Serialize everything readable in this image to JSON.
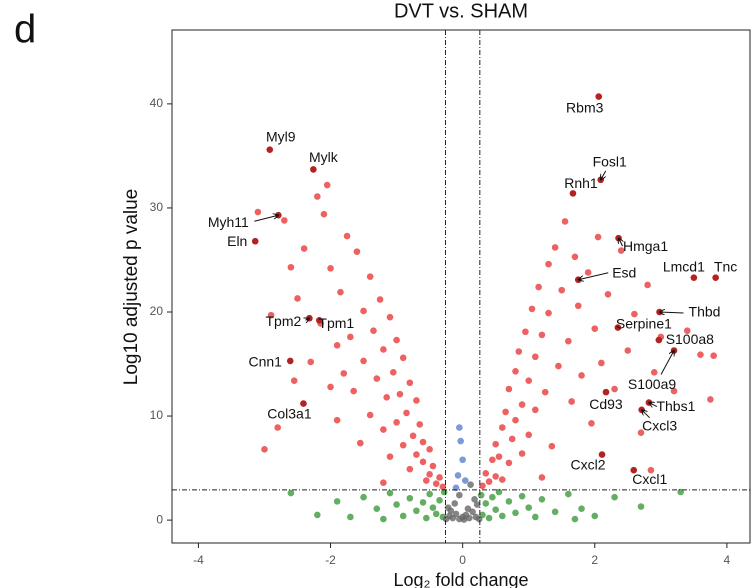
{
  "chart_data": {
    "type": "scatter",
    "panel_label": "d",
    "title": "DVT vs. SHAM",
    "xlabel": "Log₂ fold change",
    "ylabel": "Log10 adjusted p value",
    "xlim": [
      -4.4,
      4.35
    ],
    "ylim": [
      -2.2,
      47.1
    ],
    "xticks": [
      -4,
      -2,
      0,
      2,
      4
    ],
    "yticks": [
      0,
      10,
      20,
      30,
      40
    ],
    "grid": false,
    "thresholds": {
      "x": [
        -0.26,
        0.26
      ],
      "y": 2.9
    },
    "series": [
      {
        "color": "#3c9a3c",
        "x": [
          -2.6,
          -2.2,
          -1.9,
          -1.7,
          -1.5,
          -1.3,
          -1.2,
          -1.1,
          -1.0,
          -0.9,
          -0.8,
          -0.7,
          -0.6,
          -0.55,
          -0.5,
          -0.45,
          -0.4,
          -0.35,
          -0.3,
          -0.28,
          0.28,
          0.3,
          0.35,
          0.4,
          0.45,
          0.5,
          0.55,
          0.6,
          0.7,
          0.8,
          0.9,
          1.0,
          1.1,
          1.2,
          1.4,
          1.6,
          1.8,
          2.0,
          2.3,
          2.7,
          3.3,
          1.7
        ],
        "values": [
          2.6,
          0.5,
          1.8,
          0.3,
          2.2,
          1.1,
          0.1,
          2.6,
          1.5,
          0.4,
          2.1,
          0.9,
          1.7,
          0.2,
          2.5,
          1.2,
          0.6,
          1.9,
          0.3,
          2.7,
          2.4,
          0.5,
          1.6,
          0.2,
          2.2,
          1.0,
          2.7,
          0.4,
          1.8,
          0.7,
          2.3,
          1.2,
          0.3,
          2.0,
          0.8,
          2.5,
          1.1,
          0.4,
          2.2,
          1.3,
          2.7,
          0.1
        ]
      },
      {
        "color": "#666666",
        "x": [
          -0.25,
          -0.2,
          -0.15,
          -0.1,
          -0.05,
          0,
          0.05,
          0.1,
          0.15,
          0.2,
          0.25,
          -0.22,
          -0.12,
          0.08,
          0.18,
          -0.05,
          0.12,
          -0.18,
          0.02,
          0.22
        ],
        "values": [
          0.1,
          0.4,
          0.2,
          0.6,
          0.1,
          0.3,
          0.5,
          0.2,
          0.8,
          0.3,
          0.1,
          1.2,
          1.6,
          1.1,
          2.0,
          2.4,
          3.4,
          0.9,
          0.05,
          1.5
        ]
      },
      {
        "color": "#5b7fd1",
        "x": [
          -0.05,
          -0.03,
          0,
          -0.07,
          0.04,
          -0.1
        ],
        "values": [
          8.9,
          7.6,
          5.8,
          4.3,
          3.8,
          3.1
        ]
      },
      {
        "color": "#e8393b",
        "x": [
          -0.3,
          -0.35,
          -0.4,
          -0.45,
          -0.5,
          -0.5,
          -0.55,
          -0.6,
          -0.6,
          -0.65,
          -0.7,
          -0.7,
          -0.75,
          -0.8,
          -0.8,
          -0.85,
          -0.9,
          -0.9,
          -0.95,
          -1.0,
          -1.0,
          -1.05,
          -1.1,
          -1.1,
          -1.15,
          -1.2,
          -1.2,
          -1.25,
          -1.3,
          -1.35,
          -1.4,
          -1.4,
          -1.5,
          -1.5,
          -1.55,
          -1.6,
          -1.65,
          -1.7,
          -1.75,
          -1.8,
          -1.85,
          -1.9,
          -1.9,
          -2.0,
          -2.0,
          -2.1,
          -2.15,
          -2.2,
          -2.3,
          -2.4,
          -2.5,
          -2.55,
          -2.6,
          -2.7,
          -2.8,
          -2.9,
          -3.0,
          -3.1,
          -2.05,
          -1.2,
          0.3,
          0.35,
          0.4,
          0.45,
          0.5,
          0.5,
          0.55,
          0.6,
          0.6,
          0.65,
          0.7,
          0.7,
          0.75,
          0.8,
          0.8,
          0.85,
          0.9,
          0.9,
          0.95,
          1.0,
          1.0,
          1.05,
          1.1,
          1.1,
          1.15,
          1.2,
          1.25,
          1.3,
          1.3,
          1.35,
          1.4,
          1.45,
          1.5,
          1.55,
          1.6,
          1.65,
          1.7,
          1.75,
          1.8,
          1.9,
          1.95,
          2.0,
          2.05,
          2.1,
          2.2,
          2.3,
          2.4,
          2.5,
          2.6,
          2.7,
          2.8,
          2.9,
          3.0,
          3.2,
          3.4,
          3.6,
          3.8,
          3.75,
          2.85,
          1.2
        ],
        "values": [
          3.2,
          4.1,
          3.5,
          5.2,
          4.4,
          6.8,
          3.8,
          7.5,
          5.6,
          9.2,
          6.3,
          11.5,
          8.1,
          4.9,
          13.2,
          10.3,
          7.2,
          15.6,
          12.1,
          9.4,
          17.3,
          14.2,
          6.1,
          19.5,
          11.8,
          16.4,
          8.7,
          21.2,
          13.6,
          18.2,
          10.1,
          23.4,
          15.3,
          20.1,
          7.4,
          25.8,
          12.4,
          17.6,
          27.3,
          14.1,
          21.9,
          9.6,
          16.8,
          24.2,
          12.8,
          29.4,
          18.9,
          31.1,
          15.2,
          26.1,
          21.3,
          13.4,
          24.3,
          28.8,
          8.9,
          19.7,
          6.8,
          29.6,
          32.2,
          3.6,
          3.3,
          4.5,
          3.7,
          5.8,
          4.2,
          7.3,
          6.1,
          8.9,
          3.9,
          10.4,
          5.5,
          12.6,
          7.8,
          14.3,
          9.6,
          16.2,
          11.1,
          6.4,
          18.1,
          13.4,
          8.2,
          20.3,
          15.7,
          10.6,
          22.4,
          17.8,
          12.3,
          24.6,
          19.9,
          7.1,
          26.2,
          14.8,
          22.1,
          28.7,
          17.2,
          11.4,
          25.3,
          20.6,
          13.9,
          23.8,
          9.3,
          18.4,
          27.2,
          15.1,
          21.7,
          12.6,
          25.9,
          16.3,
          19.8,
          8.4,
          22.6,
          14.2,
          17.6,
          12.4,
          18.2,
          15.9,
          15.8,
          11.6,
          4.8,
          4.1
        ]
      }
    ],
    "annotation_color": "#b22222",
    "annotations": [
      {
        "label": "Rbm3",
        "x": 2.06,
        "y": 40.7
      },
      {
        "label": "Myl9",
        "x": -2.92,
        "y": 35.6
      },
      {
        "label": "Mylk",
        "x": -2.26,
        "y": 33.7
      },
      {
        "label": "Fosl1",
        "x": 2.09,
        "y": 32.7
      },
      {
        "label": "Rnh1",
        "x": 1.67,
        "y": 31.4
      },
      {
        "label": "Myh11",
        "x": -2.79,
        "y": 29.3
      },
      {
        "label": "Eln",
        "x": -3.14,
        "y": 26.8
      },
      {
        "label": "Hmga1",
        "x": 2.36,
        "y": 27.1
      },
      {
        "label": "Esd",
        "x": 1.75,
        "y": 23.1
      },
      {
        "label": "Lmcd1",
        "x": 3.5,
        "y": 23.3
      },
      {
        "label": "Tnc",
        "x": 3.83,
        "y": 23.3
      },
      {
        "label": "Thbd",
        "x": 2.98,
        "y": 20
      },
      {
        "label": "Tpm1",
        "x": -2.17,
        "y": 19.2
      },
      {
        "label": "Tpm2",
        "x": -2.32,
        "y": 19.4
      },
      {
        "label": "Serpine1",
        "x": 2.35,
        "y": 18.5
      },
      {
        "label": "S100a8",
        "x": 2.97,
        "y": 17.3
      },
      {
        "label": "Cnn1",
        "x": -2.61,
        "y": 15.3
      },
      {
        "label": "S100a9",
        "x": 3.2,
        "y": 16.3
      },
      {
        "label": "Cd93",
        "x": 2.17,
        "y": 12.3
      },
      {
        "label": "Thbs1",
        "x": 2.82,
        "y": 11.3
      },
      {
        "label": "Col3a1",
        "x": -2.41,
        "y": 11.2
      },
      {
        "label": "Cxcl3",
        "x": 2.71,
        "y": 10.6
      },
      {
        "label": "Cxcl2",
        "x": 2.11,
        "y": 6.3
      },
      {
        "label": "Cxcl1",
        "x": 2.59,
        "y": 4.8
      }
    ]
  }
}
